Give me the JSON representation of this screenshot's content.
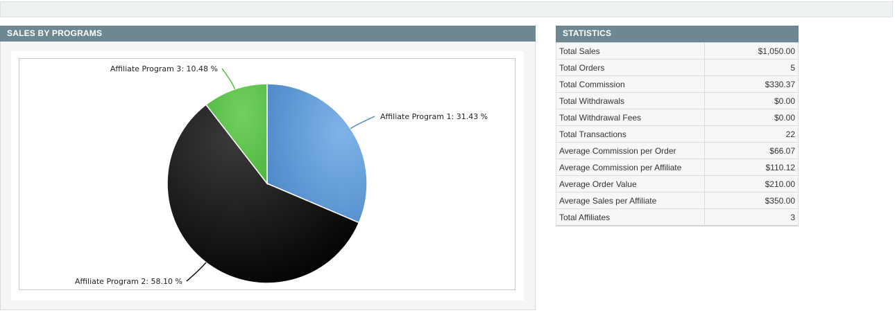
{
  "sales_panel": {
    "title": "SALES BY PROGRAMS"
  },
  "stats_panel": {
    "title": "STATISTICS"
  },
  "chart_data": {
    "type": "pie",
    "slices": [
      {
        "label": "Affiliate Program 1: 31.43 %",
        "value": 31.43,
        "color": "#5b9bd5"
      },
      {
        "label": "Affiliate Program 2: 58.10 %",
        "value": 58.1,
        "color": "#111111"
      },
      {
        "label": "Affiliate Program 3: 10.48 %",
        "value": 10.48,
        "color": "#5cbf4a"
      }
    ]
  },
  "statistics": [
    {
      "label": "Total Sales",
      "value": "$1,050.00"
    },
    {
      "label": "Total Orders",
      "value": "5"
    },
    {
      "label": "Total Commission",
      "value": "$330.37"
    },
    {
      "label": "Total Withdrawals",
      "value": "$0.00"
    },
    {
      "label": "Total Withdrawal Fees",
      "value": "$0.00"
    },
    {
      "label": "Total Transactions",
      "value": "22"
    },
    {
      "label": "Average Commission per Order",
      "value": "$66.07"
    },
    {
      "label": "Average Commission per Affiliate",
      "value": "$110.12"
    },
    {
      "label": "Average Order Value",
      "value": "$210.00"
    },
    {
      "label": "Average Sales per Affiliate",
      "value": "$350.00"
    },
    {
      "label": "Total Affiliates",
      "value": "3"
    }
  ]
}
